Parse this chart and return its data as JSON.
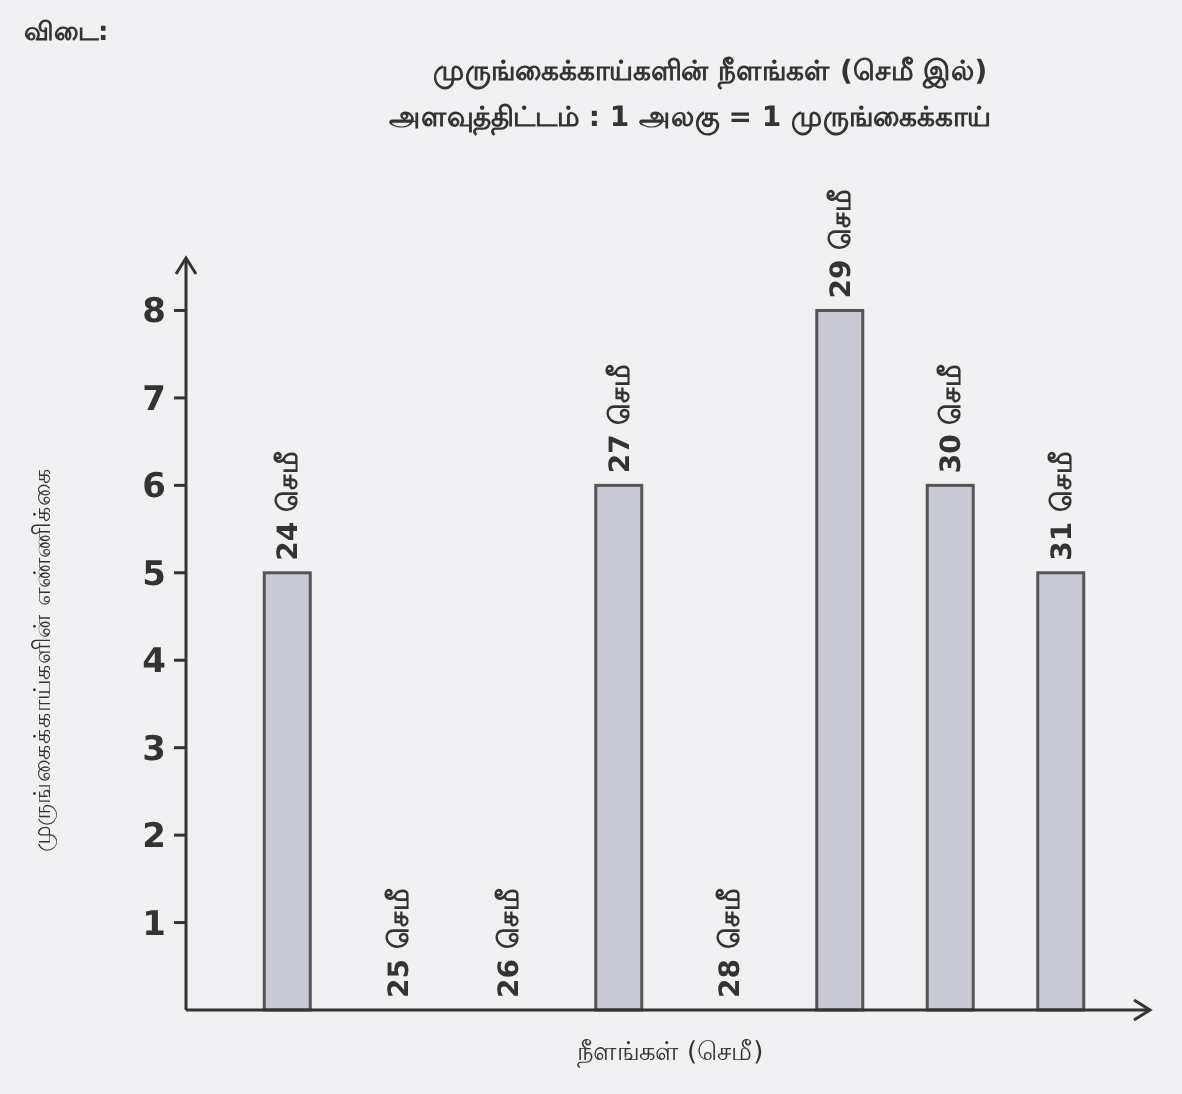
{
  "chart_data": {
    "type": "bar",
    "title": "முருங்கைக்காய்களின் நீளங்கள் (செமீ இல்)",
    "subtitle": "அளவுத்திட்டம் : 1 அலகு = 1 முருங்கைக்காய்",
    "annotations": [
      "விடை:"
    ],
    "xlabel": "நீளங்கள் (செமீ)",
    "ylabel": "முருங்கைக்காய்களின் எண்ணிக்கை",
    "categories": [
      "24 செமீ",
      "25 செமீ",
      "26 செமீ",
      "27 செமீ",
      "28 செமீ",
      "29 செமீ",
      "30 செமீ",
      "31 செமீ"
    ],
    "values": [
      5,
      0,
      0,
      6,
      0,
      8,
      6,
      5
    ],
    "color": "#c9cad3",
    "ylim": [
      0,
      8.6
    ],
    "yticks": [
      1,
      2,
      3,
      4,
      5,
      6,
      7,
      8
    ],
    "grid": false
  }
}
